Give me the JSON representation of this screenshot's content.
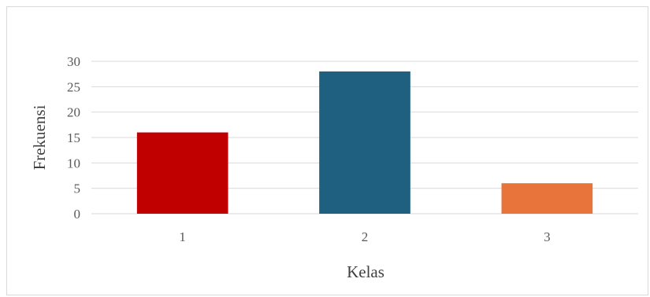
{
  "chart_data": {
    "type": "bar",
    "categories": [
      "1",
      "2",
      "3"
    ],
    "values": [
      16,
      28,
      6
    ],
    "colors": [
      "#c00000",
      "#1f5f80",
      "#e8743b"
    ],
    "title": "",
    "xlabel": "Kelas",
    "ylabel": "Frekuensi",
    "ylim": [
      0,
      30
    ],
    "yticks": [
      0,
      5,
      10,
      15,
      20,
      25,
      30
    ],
    "grid": true,
    "legend": "none"
  }
}
